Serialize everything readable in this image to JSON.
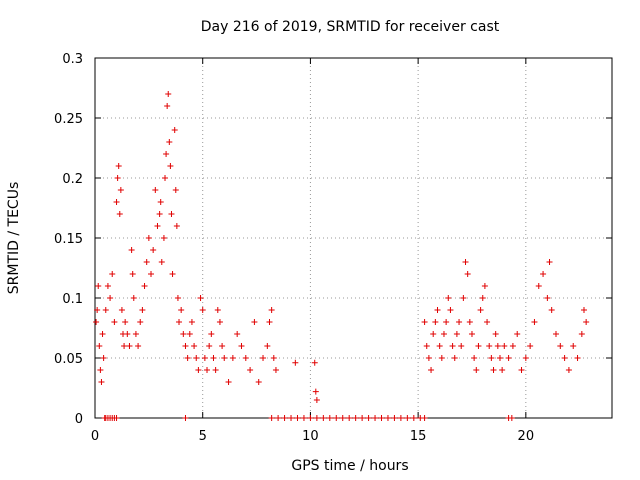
{
  "chart_data": {
    "type": "scatter",
    "title": "Day 216 of 2019, SRMTID for receiver cast",
    "xlabel": "GPS time / hours",
    "ylabel": "SRMTID / TECUs",
    "xlim": [
      0,
      24
    ],
    "ylim": [
      0,
      0.3
    ],
    "x_ticks": [
      0,
      5,
      10,
      15,
      20
    ],
    "x_tick_labels": [
      "0",
      "5",
      "10",
      "15",
      "20"
    ],
    "y_ticks": [
      0,
      0.05,
      0.1,
      0.15,
      0.2,
      0.25,
      0.3
    ],
    "y_tick_labels": [
      "0",
      "0.05",
      "0.1",
      "0.15",
      "0.2",
      "0.25",
      "0.3"
    ],
    "grid": true,
    "marker": "+",
    "series": [
      {
        "name": "SRMTID",
        "color": "#e00000",
        "description_points": "approximate representative sample of plotted points",
        "points": [
          [
            0.05,
            0.08
          ],
          [
            0.1,
            0.09
          ],
          [
            0.15,
            0.11
          ],
          [
            0.2,
            0.06
          ],
          [
            0.25,
            0.04
          ],
          [
            0.3,
            0.03
          ],
          [
            0.35,
            0.07
          ],
          [
            0.4,
            0.05
          ],
          [
            0.45,
            0.0
          ],
          [
            0.5,
            0.0
          ],
          [
            0.6,
            0.0
          ],
          [
            0.7,
            0.0
          ],
          [
            0.8,
            0.0
          ],
          [
            0.9,
            0.0
          ],
          [
            1.0,
            0.0
          ],
          [
            0.5,
            0.09
          ],
          [
            0.6,
            0.11
          ],
          [
            0.7,
            0.1
          ],
          [
            0.8,
            0.12
          ],
          [
            0.9,
            0.08
          ],
          [
            1.0,
            0.18
          ],
          [
            1.05,
            0.2
          ],
          [
            1.1,
            0.21
          ],
          [
            1.15,
            0.17
          ],
          [
            1.2,
            0.19
          ],
          [
            1.25,
            0.09
          ],
          [
            1.3,
            0.07
          ],
          [
            1.35,
            0.06
          ],
          [
            1.4,
            0.08
          ],
          [
            1.5,
            0.07
          ],
          [
            1.6,
            0.06
          ],
          [
            1.7,
            0.14
          ],
          [
            1.75,
            0.12
          ],
          [
            1.8,
            0.1
          ],
          [
            1.9,
            0.07
          ],
          [
            2.0,
            0.06
          ],
          [
            2.1,
            0.08
          ],
          [
            2.2,
            0.09
          ],
          [
            2.3,
            0.11
          ],
          [
            2.4,
            0.13
          ],
          [
            2.5,
            0.15
          ],
          [
            2.6,
            0.12
          ],
          [
            2.7,
            0.14
          ],
          [
            2.8,
            0.19
          ],
          [
            2.9,
            0.16
          ],
          [
            3.0,
            0.17
          ],
          [
            3.05,
            0.18
          ],
          [
            3.1,
            0.13
          ],
          [
            3.2,
            0.15
          ],
          [
            3.25,
            0.2
          ],
          [
            3.3,
            0.22
          ],
          [
            3.35,
            0.26
          ],
          [
            3.4,
            0.27
          ],
          [
            3.45,
            0.23
          ],
          [
            3.5,
            0.21
          ],
          [
            3.55,
            0.17
          ],
          [
            3.6,
            0.12
          ],
          [
            3.7,
            0.24
          ],
          [
            3.75,
            0.19
          ],
          [
            3.8,
            0.16
          ],
          [
            3.85,
            0.1
          ],
          [
            3.9,
            0.08
          ],
          [
            4.0,
            0.09
          ],
          [
            4.1,
            0.07
          ],
          [
            4.2,
            0.06
          ],
          [
            4.3,
            0.05
          ],
          [
            4.4,
            0.07
          ],
          [
            4.5,
            0.08
          ],
          [
            4.6,
            0.06
          ],
          [
            4.7,
            0.05
          ],
          [
            4.8,
            0.04
          ],
          [
            4.9,
            0.1
          ],
          [
            5.0,
            0.09
          ],
          [
            5.1,
            0.05
          ],
          [
            5.2,
            0.04
          ],
          [
            5.3,
            0.06
          ],
          [
            5.4,
            0.07
          ],
          [
            5.5,
            0.05
          ],
          [
            5.6,
            0.04
          ],
          [
            5.7,
            0.09
          ],
          [
            5.8,
            0.08
          ],
          [
            5.9,
            0.06
          ],
          [
            6.0,
            0.05
          ],
          [
            6.2,
            0.03
          ],
          [
            6.4,
            0.05
          ],
          [
            6.6,
            0.07
          ],
          [
            6.8,
            0.06
          ],
          [
            7.0,
            0.05
          ],
          [
            7.2,
            0.04
          ],
          [
            7.4,
            0.08
          ],
          [
            7.6,
            0.03
          ],
          [
            7.8,
            0.05
          ],
          [
            8.0,
            0.06
          ],
          [
            8.1,
            0.08
          ],
          [
            8.2,
            0.09
          ],
          [
            8.3,
            0.05
          ],
          [
            8.4,
            0.04
          ],
          [
            4.2,
            0.0
          ],
          [
            8.2,
            0.0
          ],
          [
            8.5,
            0.0
          ],
          [
            8.8,
            0.0
          ],
          [
            9.1,
            0.0
          ],
          [
            9.4,
            0.0
          ],
          [
            9.7,
            0.0
          ],
          [
            10.0,
            0.0
          ],
          [
            10.3,
            0.0
          ],
          [
            10.6,
            0.0
          ],
          [
            10.9,
            0.0
          ],
          [
            11.2,
            0.0
          ],
          [
            11.5,
            0.0
          ],
          [
            11.8,
            0.0
          ],
          [
            12.1,
            0.0
          ],
          [
            12.4,
            0.0
          ],
          [
            12.7,
            0.0
          ],
          [
            13.0,
            0.0
          ],
          [
            13.3,
            0.0
          ],
          [
            13.6,
            0.0
          ],
          [
            13.9,
            0.0
          ],
          [
            14.2,
            0.0
          ],
          [
            14.5,
            0.0
          ],
          [
            14.8,
            0.0
          ],
          [
            15.1,
            0.0
          ],
          [
            15.3,
            0.0
          ],
          [
            19.2,
            0.0
          ],
          [
            19.35,
            0.0
          ],
          [
            9.3,
            0.046
          ],
          [
            10.2,
            0.046
          ],
          [
            10.25,
            0.022
          ],
          [
            10.3,
            0.015
          ],
          [
            15.3,
            0.08
          ],
          [
            15.4,
            0.06
          ],
          [
            15.5,
            0.05
          ],
          [
            15.6,
            0.04
          ],
          [
            15.7,
            0.07
          ],
          [
            15.8,
            0.08
          ],
          [
            15.9,
            0.09
          ],
          [
            16.0,
            0.06
          ],
          [
            16.1,
            0.05
          ],
          [
            16.2,
            0.07
          ],
          [
            16.3,
            0.08
          ],
          [
            16.4,
            0.1
          ],
          [
            16.5,
            0.09
          ],
          [
            16.6,
            0.06
          ],
          [
            16.7,
            0.05
          ],
          [
            16.8,
            0.07
          ],
          [
            16.9,
            0.08
          ],
          [
            17.0,
            0.06
          ],
          [
            17.1,
            0.1
          ],
          [
            17.2,
            0.13
          ],
          [
            17.3,
            0.12
          ],
          [
            17.4,
            0.08
          ],
          [
            17.5,
            0.07
          ],
          [
            17.6,
            0.05
          ],
          [
            17.7,
            0.04
          ],
          [
            17.8,
            0.06
          ],
          [
            17.9,
            0.09
          ],
          [
            18.0,
            0.1
          ],
          [
            18.1,
            0.11
          ],
          [
            18.2,
            0.08
          ],
          [
            18.3,
            0.06
          ],
          [
            18.4,
            0.05
          ],
          [
            18.5,
            0.04
          ],
          [
            18.6,
            0.07
          ],
          [
            18.7,
            0.06
          ],
          [
            18.8,
            0.05
          ],
          [
            18.9,
            0.04
          ],
          [
            19.0,
            0.06
          ],
          [
            19.2,
            0.05
          ],
          [
            19.4,
            0.06
          ],
          [
            19.6,
            0.07
          ],
          [
            19.8,
            0.04
          ],
          [
            20.0,
            0.05
          ],
          [
            20.2,
            0.06
          ],
          [
            20.4,
            0.08
          ],
          [
            20.6,
            0.11
          ],
          [
            20.8,
            0.12
          ],
          [
            21.0,
            0.1
          ],
          [
            21.1,
            0.13
          ],
          [
            21.2,
            0.09
          ],
          [
            21.4,
            0.07
          ],
          [
            21.6,
            0.06
          ],
          [
            21.8,
            0.05
          ],
          [
            22.0,
            0.04
          ],
          [
            22.2,
            0.06
          ],
          [
            22.4,
            0.05
          ],
          [
            22.6,
            0.07
          ],
          [
            22.7,
            0.09
          ],
          [
            22.8,
            0.08
          ]
        ]
      }
    ]
  }
}
